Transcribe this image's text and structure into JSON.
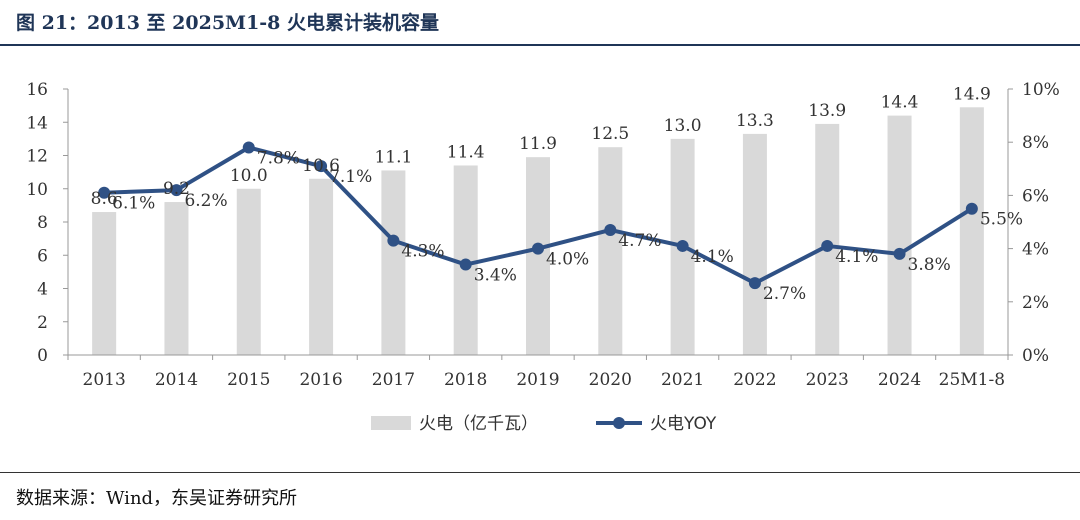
{
  "figure_title": "图 21：2013 至 2025M1-8 火电累计装机容量",
  "source": "数据来源：Wind，东吴证券研究所",
  "chart_data": {
    "type": "bar",
    "categories": [
      "2013",
      "2014",
      "2015",
      "2016",
      "2017",
      "2018",
      "2019",
      "2020",
      "2021",
      "2022",
      "2023",
      "2024",
      "25M1-8"
    ],
    "series": [
      {
        "name": "火电（亿千瓦）",
        "type": "bar",
        "axis": "left",
        "color": "#d9d9d9",
        "values": [
          8.6,
          9.2,
          10.0,
          10.6,
          11.1,
          11.4,
          11.9,
          12.5,
          13.0,
          13.3,
          13.9,
          14.4,
          14.9
        ],
        "labels": [
          "8.6",
          "9.2",
          "10.0",
          "10.6",
          "11.1",
          "11.4",
          "11.9",
          "12.5",
          "13.0",
          "13.3",
          "13.9",
          "14.4",
          "14.9"
        ]
      },
      {
        "name": "火电YOY",
        "type": "line",
        "axis": "right",
        "color": "#2f5185",
        "values": [
          6.1,
          6.2,
          7.8,
          7.1,
          4.3,
          3.4,
          4.0,
          4.7,
          4.1,
          2.7,
          4.1,
          3.8,
          5.5
        ],
        "labels": [
          "6.1%",
          "6.2%",
          "7.8%",
          "7.1%",
          "4.3%",
          "3.4%",
          "4.0%",
          "4.7%",
          "4.1%",
          "2.7%",
          "4.1%",
          "3.8%",
          "5.5%"
        ]
      }
    ],
    "y_left": {
      "min": 0,
      "max": 16,
      "ticks": [
        "0",
        "2",
        "4",
        "6",
        "8",
        "10",
        "12",
        "14",
        "16"
      ]
    },
    "y_right": {
      "min": 0,
      "max": 10,
      "ticks": [
        "0%",
        "2%",
        "4%",
        "6%",
        "8%",
        "10%"
      ]
    },
    "grid": false,
    "legend_position": "bottom"
  }
}
